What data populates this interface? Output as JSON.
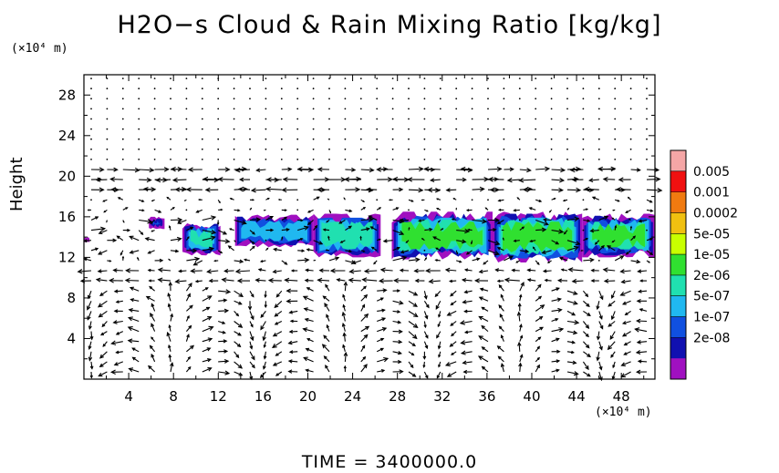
{
  "header": {
    "title": "H2O−s Cloud & Rain Mixing Ratio [kg/kg]",
    "y_unit": "(×10⁴ m)",
    "x_unit": "(×10⁴ m)",
    "y_axis_label": "Height",
    "time_label": "TIME  =  3400000.0"
  },
  "chart_data": {
    "type": "heatmap",
    "title": "H2O-s Cloud & Rain Mixing Ratio [kg/kg]",
    "xlabel": "",
    "ylabel": "Height",
    "x_unit": "(x10^4 m)",
    "y_unit": "(x10^4 m)",
    "xlim": [
      0,
      51
    ],
    "ylim": [
      0,
      30
    ],
    "x_ticks": [
      "4",
      "8",
      "12",
      "16",
      "20",
      "24",
      "28",
      "32",
      "36",
      "40",
      "44",
      "48"
    ],
    "y_ticks": [
      "4",
      "8",
      "12",
      "16",
      "20",
      "24",
      "28"
    ],
    "colorbar_labels": [
      "0.005",
      "0.001",
      "0.0002",
      "5e-05",
      "1e-05",
      "2e-06",
      "5e-07",
      "1e-07",
      "2e-08"
    ],
    "colorbar_colors": [
      "#f5a6a6",
      "#f01010",
      "#f07a10",
      "#f0c010",
      "#c8ff00",
      "#30e030",
      "#20e0b0",
      "#20b8f0",
      "#1050e0",
      "#1010b0",
      "#a010c0"
    ],
    "grid": false,
    "overlay": "wind vectors",
    "cloud_regions": [
      {
        "x_start": 0,
        "x_end": 0.5,
        "y_bottom": 13.5,
        "y_top": 14.0,
        "max_level": "2e-06"
      },
      {
        "x_start": 5.8,
        "x_end": 7.2,
        "y_bottom": 14.8,
        "y_top": 16.0,
        "max_level": "2e-06"
      },
      {
        "x_start": 8.8,
        "x_end": 12.2,
        "y_bottom": 12.2,
        "y_top": 15.5,
        "max_level": "2e-06"
      },
      {
        "x_start": 13.5,
        "x_end": 20.5,
        "y_bottom": 13.0,
        "y_top": 16.2,
        "max_level": "5e-07"
      },
      {
        "x_start": 20.5,
        "x_end": 26.5,
        "y_bottom": 12.0,
        "y_top": 16.3,
        "max_level": "2e-06"
      },
      {
        "x_start": 27.5,
        "x_end": 36.5,
        "y_bottom": 11.8,
        "y_top": 16.5,
        "max_level": "1e-05"
      },
      {
        "x_start": 36.5,
        "x_end": 44.5,
        "y_bottom": 11.5,
        "y_top": 16.5,
        "max_level": "1e-05"
      },
      {
        "x_start": 44.5,
        "x_end": 51.0,
        "y_bottom": 12.0,
        "y_top": 16.3,
        "max_level": "1e-05"
      }
    ]
  }
}
